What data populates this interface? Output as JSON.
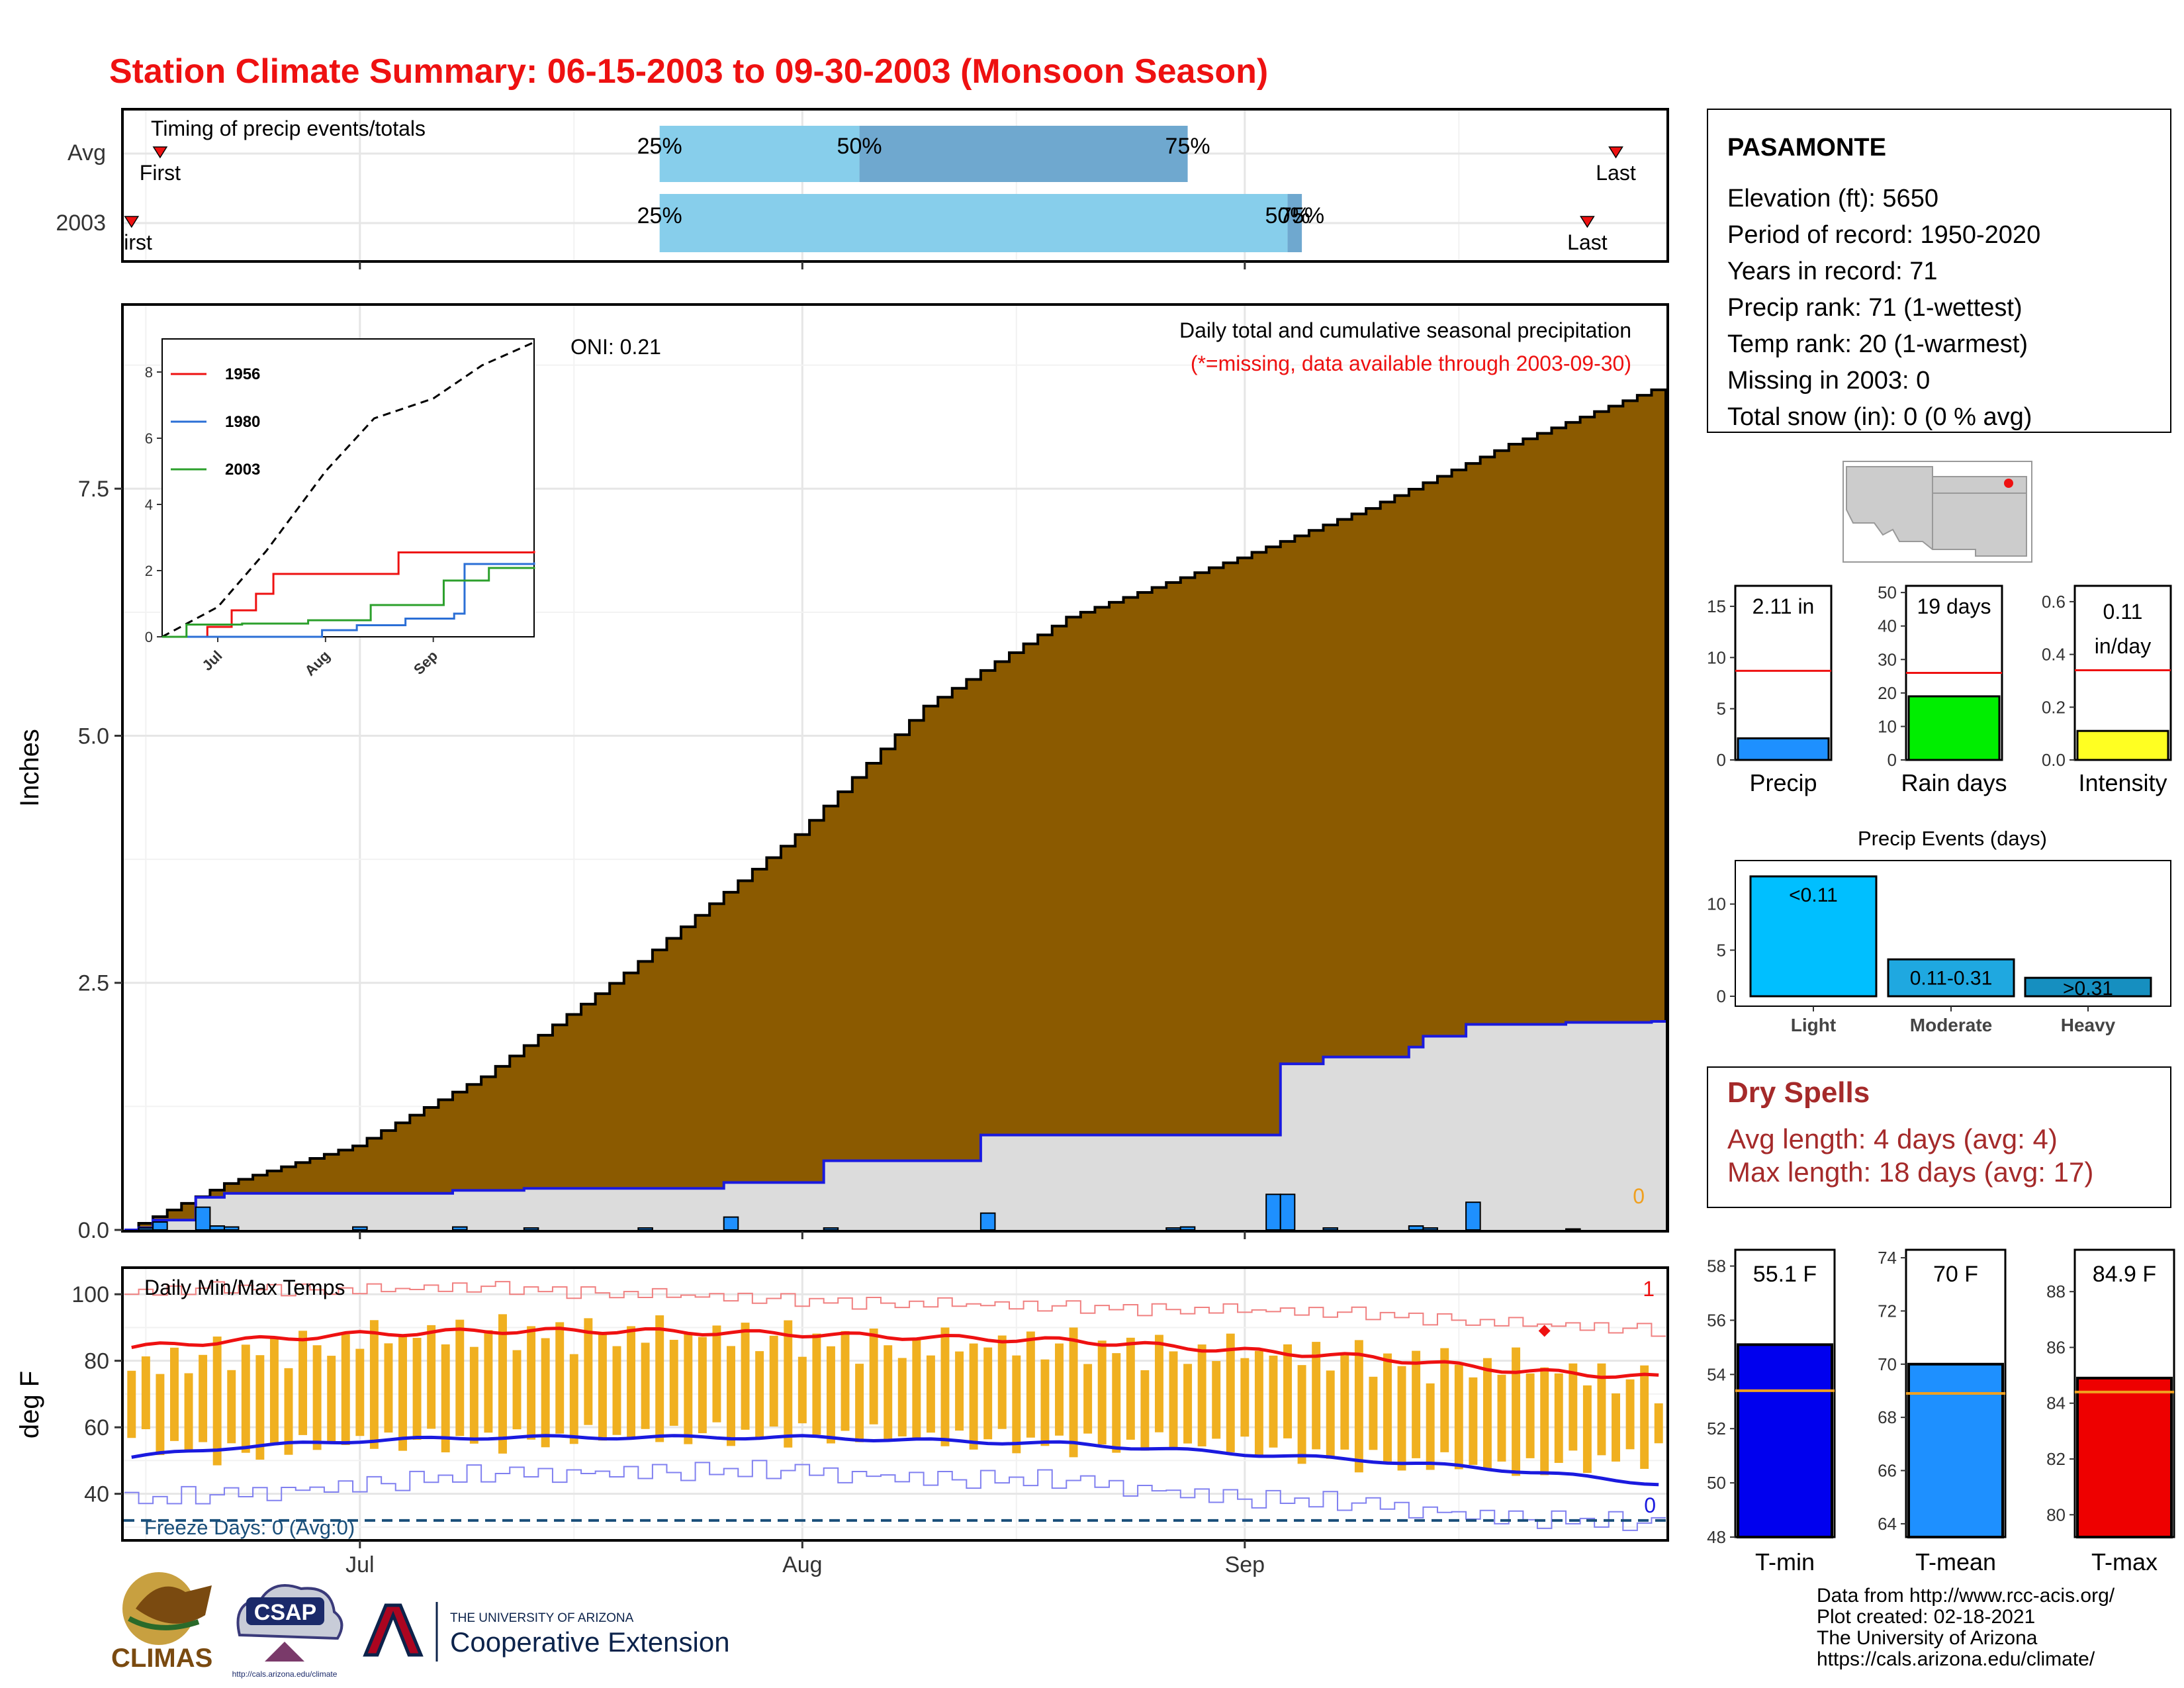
{
  "title": "Station Climate Summary: 06-15-2003 to 09-30-2003 (Monsoon Season)",
  "colors": {
    "title": "#ee1111",
    "cumulative_avg_fill": "#8b5a00",
    "cumulative_2003_fill": "#dcdcdc",
    "cumulative_2003_line": "#1a1adf",
    "daily_bar": "#1e90ff",
    "timing_light": "#87ceeb",
    "timing_dark": "#6fa8cf",
    "temp_bar": "#f0b020",
    "tmax_avg": "#ee1111",
    "tmin_avg": "#1a1adf",
    "freeze_line": "#1a4f7a",
    "dry_spells": "#a52a2a"
  },
  "timing_panel": {
    "label": "Timing of precip events/totals",
    "rows": [
      {
        "name": "Avg",
        "first_label": "First",
        "last_label": "Last",
        "p25": "25%",
        "p50": "50%",
        "p75": "75%"
      },
      {
        "name": "2003",
        "first_label": "First",
        "last_label": "Last",
        "p25": "25%",
        "p50": "50%",
        "p75": "75%"
      }
    ]
  },
  "cumulative_panel": {
    "ylabel": "Inches",
    "header": "Daily total and cumulative seasonal precipitation",
    "note": "(*=missing, data available through 2003-09-30)",
    "oni": "ONI: 0.21",
    "missing_count": "0",
    "y_ticks": [
      "0.0",
      "2.5",
      "5.0",
      "7.5"
    ],
    "x_ticks": [
      "Jul",
      "Aug",
      "Sep"
    ]
  },
  "inset": {
    "legend": [
      "1956",
      "1980",
      "2003"
    ],
    "legend_colors": [
      "#ee1111",
      "#2b6fd6",
      "#2ca02c"
    ],
    "y_ticks": [
      "0",
      "2",
      "4",
      "6",
      "8"
    ],
    "x_ticks": [
      "Jul",
      "Aug",
      "Sep"
    ]
  },
  "temp_panel": {
    "ylabel": "deg F",
    "label": "Daily Min/Max Temps",
    "freeze_label": "Freeze Days: 0 (Avg:0)",
    "y_ticks": [
      "100",
      "80",
      "60",
      "40"
    ],
    "x_ticks": [
      "Jul",
      "Aug",
      "Sep"
    ],
    "record_high_count": "1",
    "record_low_count": "0"
  },
  "station": {
    "name": "PASAMONTE",
    "lines": [
      "Elevation (ft): 5650",
      "Period of record: 1950-2020",
      "Years in record: 71",
      "Precip rank: 71 (1-wettest)",
      "Temp rank: 20 (1-warmest)",
      "Missing in 2003: 0",
      "Total snow (in): 0 (0 % avg)"
    ]
  },
  "mini_bars": [
    {
      "label": "Precip",
      "value_label": "2.11 in",
      "value": 2.11,
      "avg": 8.7,
      "max": 17,
      "ticks": [
        "0",
        "5",
        "10",
        "15"
      ],
      "tick_vals": [
        0,
        5,
        10,
        15
      ],
      "color": "#1e90ff"
    },
    {
      "label": "Rain days",
      "value_label": "19 days",
      "value": 19,
      "avg": 26,
      "max": 52,
      "ticks": [
        "0",
        "10",
        "20",
        "30",
        "40",
        "50"
      ],
      "tick_vals": [
        0,
        10,
        20,
        30,
        40,
        50
      ],
      "color": "#00ee00"
    },
    {
      "label": "Intensity",
      "value_label": "0.11 in/day",
      "value": 0.11,
      "avg": 0.34,
      "max": 0.66,
      "ticks": [
        "0.0",
        "0.2",
        "0.4",
        "0.6"
      ],
      "tick_vals": [
        0,
        0.2,
        0.4,
        0.6
      ],
      "color": "#ffff22"
    }
  ],
  "precip_events": {
    "title": "Precip Events (days)",
    "categories": [
      "Light",
      "Moderate",
      "Heavy"
    ],
    "bar_labels": [
      "<0.11",
      "0.11-0.31",
      ">0.31"
    ],
    "values": [
      13,
      4,
      2
    ],
    "colors": [
      "#00bfff",
      "#1fa8e0",
      "#168fc0"
    ],
    "y_ticks": [
      "0",
      "5",
      "10"
    ]
  },
  "dry_spells": {
    "title": "Dry Spells",
    "avg_line": "Avg length: 4 days (avg: 4)",
    "max_line": "Max length: 18 days (avg: 17)"
  },
  "temp_bars": [
    {
      "label": "T-min",
      "value_label": "55.1 F",
      "value": 55.1,
      "avg": 53.4,
      "ymin": 48,
      "ymax": 58.6,
      "ticks": [
        "48",
        "50",
        "52",
        "54",
        "56",
        "58"
      ],
      "tick_vals": [
        48,
        50,
        52,
        54,
        56,
        58
      ],
      "color": "#0000ee"
    },
    {
      "label": "T-mean",
      "value_label": "70 F",
      "value": 70.0,
      "avg": 68.9,
      "ymin": 63.5,
      "ymax": 74.3,
      "ticks": [
        "64",
        "66",
        "68",
        "70",
        "72",
        "74"
      ],
      "tick_vals": [
        64,
        66,
        68,
        70,
        72,
        74
      ],
      "color": "#1e90ff"
    },
    {
      "label": "T-max",
      "value_label": "84.9 F",
      "value": 84.9,
      "avg": 84.4,
      "ymin": 79.2,
      "ymax": 89.5,
      "ticks": [
        "80",
        "82",
        "84",
        "86",
        "88"
      ],
      "tick_vals": [
        80,
        82,
        84,
        86,
        88
      ],
      "color": "#ee0000"
    }
  ],
  "footer": {
    "lines": [
      "Data from http://www.rcc-acis.org/",
      "Plot created: 02-18-2021",
      "The University of Arizona",
      "https://cals.arizona.edu/climate/"
    ],
    "logos": {
      "climas": "CLIMAS",
      "csap": "CSAP",
      "csap_url": "http://cals.arizona.edu/climate",
      "ua_top": "THE UNIVERSITY OF ARIZONA",
      "ua_bottom": "Cooperative Extension"
    }
  },
  "chart_data": [
    {
      "type": "area",
      "title": "Daily total and cumulative seasonal precipitation",
      "ylabel": "Inches",
      "x_range": [
        "2003-06-15",
        "2003-09-30"
      ],
      "ylim": [
        0,
        9.35
      ],
      "series": [
        {
          "name": "",
          "x": [
            "2003-06-15",
            "2003-06-22",
            "2003-07-01",
            "2003-07-10",
            "2003-07-20",
            "2003-08-01",
            "2003-08-10",
            "2003-08-20",
            "2003-09-01",
            "2003-09-10",
            "2003-09-20",
            "2003-09-30"
          ],
          "values": [
            0.0,
            0.47,
            0.85,
            1.55,
            2.6,
            4.0,
            5.3,
            6.2,
            6.8,
            7.3,
            7.95,
            8.5
          ]
        },
        {
          "name": "2003",
          "x": [
            "2003-06-15",
            "2003-06-16",
            "2003-06-17",
            "2003-06-20",
            "2003-06-22",
            "2003-07-08",
            "2003-07-13",
            "2003-07-27",
            "2003-08-03",
            "2003-08-14",
            "2003-08-27",
            "2003-09-04",
            "2003-09-07",
            "2003-09-13",
            "2003-09-14",
            "2003-09-17",
            "2003-09-24",
            "2003-09-30"
          ],
          "values": [
            0.0,
            0.02,
            0.1,
            0.33,
            0.37,
            0.4,
            0.42,
            0.48,
            0.7,
            0.96,
            0.96,
            1.68,
            1.75,
            1.85,
            1.96,
            2.08,
            2.1,
            2.11
          ]
        },
        {
          "name": "daily",
          "x": [
            "2003-06-16",
            "2003-06-17",
            "2003-06-20",
            "2003-06-21",
            "2003-06-22",
            "2003-07-01",
            "2003-07-08",
            "2003-07-13",
            "2003-07-21",
            "2003-07-27",
            "2003-08-03",
            "2003-08-14",
            "2003-08-27",
            "2003-08-28",
            "2003-09-03",
            "2003-09-04",
            "2003-09-07",
            "2003-09-13",
            "2003-09-14",
            "2003-09-17",
            "2003-09-24"
          ],
          "values": [
            0.02,
            0.08,
            0.23,
            0.04,
            0.03,
            0.03,
            0.03,
            0.02,
            0.02,
            0.13,
            0.02,
            0.17,
            0.02,
            0.03,
            0.36,
            0.36,
            0.02,
            0.04,
            0.02,
            0.28,
            0.01
          ]
        }
      ]
    },
    {
      "type": "line",
      "title": "",
      "x_range": [
        "2003-06-15",
        "2003-09-30"
      ],
      "ylim": [
        0,
        9
      ],
      "series": [
        {
          "name": "",
          "x": [
            "2003-06-15",
            "2003-07-01",
            "2003-07-15",
            "2003-08-01",
            "2003-08-15",
            "2003-09-01",
            "2003-09-15",
            "2003-09-30"
          ],
          "values": [
            0,
            0.9,
            2.6,
            5.0,
            6.6,
            7.2,
            8.2,
            8.9
          ]
        },
        {
          "name": "1956",
          "x": [
            "2003-06-15",
            "2003-06-28",
            "2003-07-05",
            "2003-07-12",
            "2003-07-17",
            "2003-08-19",
            "2003-08-22",
            "2003-09-30"
          ],
          "values": [
            0,
            0.3,
            0.8,
            1.3,
            1.9,
            1.9,
            2.55,
            2.6
          ]
        },
        {
          "name": "1980",
          "x": [
            "2003-06-15",
            "2003-07-15",
            "2003-07-31",
            "2003-08-10",
            "2003-08-24",
            "2003-09-07",
            "2003-09-10",
            "2003-09-30"
          ],
          "values": [
            0,
            0,
            0.2,
            0.35,
            0.55,
            0.7,
            2.2,
            2.25
          ]
        },
        {
          "name": "2003",
          "x": [
            "2003-06-15",
            "2003-06-22",
            "2003-07-08",
            "2003-07-27",
            "2003-08-14",
            "2003-08-27",
            "2003-09-04",
            "2003-09-17",
            "2003-09-30"
          ],
          "values": [
            0,
            0.37,
            0.4,
            0.5,
            0.96,
            0.96,
            1.7,
            2.08,
            2.11
          ]
        }
      ]
    },
    {
      "type": "bar",
      "title": "Daily Min/Max Temps",
      "ylabel": "deg F",
      "x_range": [
        "2003-06-15",
        "2003-09-30"
      ],
      "ylim": [
        26,
        108
      ],
      "x": [
        "2003-06-15",
        "2003-06-22",
        "2003-07-01",
        "2003-07-10",
        "2003-07-20",
        "2003-08-01",
        "2003-08-10",
        "2003-08-20",
        "2003-09-01",
        "2003-09-10",
        "2003-09-20",
        "2003-09-30"
      ],
      "series": [
        {
          "name": "",
          "values": [
            77,
            82,
            86,
            88,
            88,
            86,
            84,
            84,
            82,
            80,
            78,
            72
          ]
        },
        {
          "name": "",
          "values": [
            56,
            52,
            55,
            56,
            57,
            58,
            56,
            55,
            54,
            50,
            47,
            52
          ]
        },
        {
          "name": "",
          "values": [
            84,
            86,
            88,
            89,
            89,
            88,
            87,
            86,
            83,
            81,
            77,
            75
          ]
        },
        {
          "name": "",
          "values": [
            51,
            54,
            56,
            57,
            57,
            57,
            56,
            55,
            52,
            50,
            47,
            43
          ]
        },
        {
          "name": "",
          "values": [
            100,
            102,
            101,
            102,
            100,
            98,
            97,
            96,
            95,
            94,
            91,
            89
          ]
        },
        {
          "name": "",
          "values": [
            38,
            40,
            43,
            46,
            47,
            47,
            45,
            44,
            39,
            37,
            33,
            31
          ]
        }
      ]
    },
    {
      "type": "bar",
      "categories": [
        "Light",
        "Moderate",
        "Heavy"
      ],
      "values": [
        13,
        4,
        2
      ],
      "title": "Precip Events (days)",
      "ylim": [
        0,
        14
      ]
    }
  ]
}
